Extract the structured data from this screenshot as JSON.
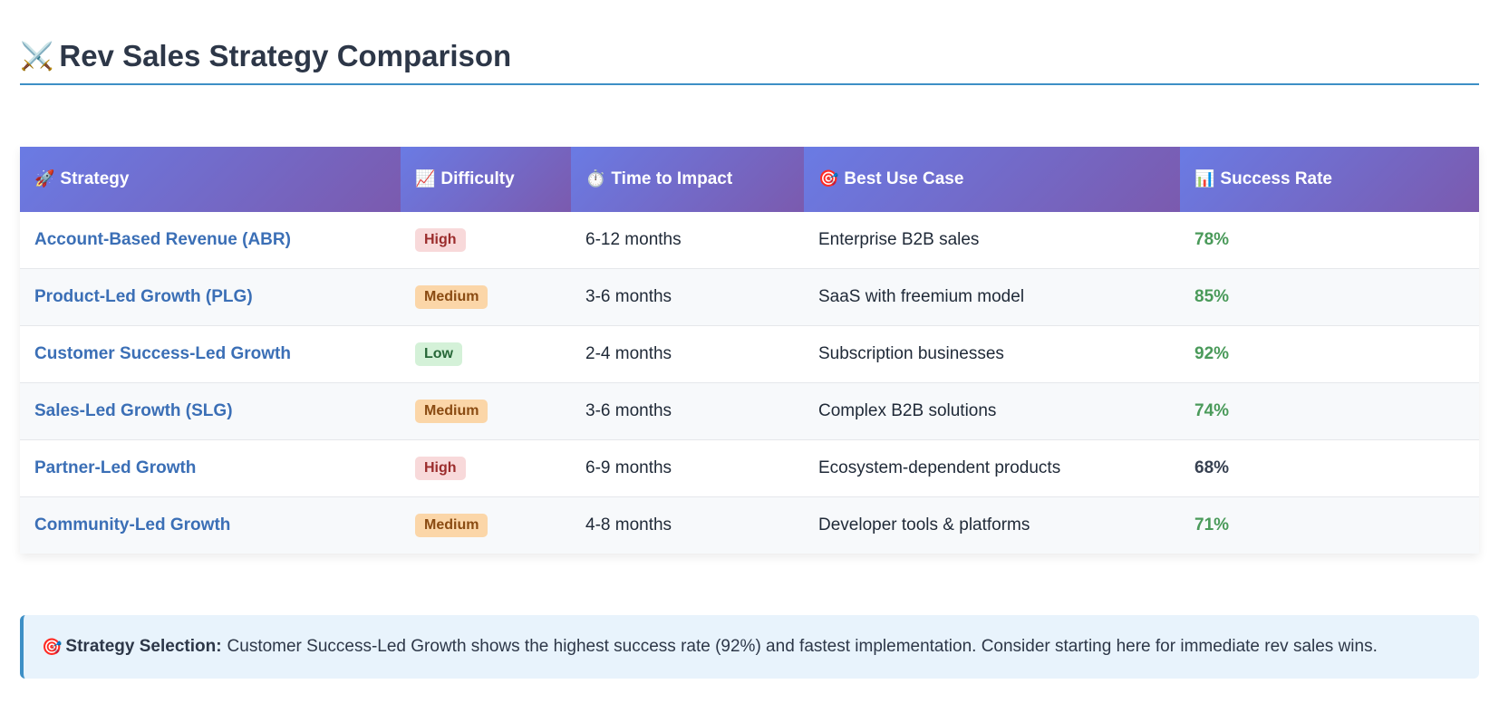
{
  "header": {
    "icon": "⚔️",
    "title": "Rev Sales Strategy Comparison"
  },
  "table": {
    "columns": [
      {
        "icon": "🚀",
        "label": "Strategy"
      },
      {
        "icon": "📈",
        "label": "Difficulty"
      },
      {
        "icon": "⏱️",
        "label": "Time to Impact"
      },
      {
        "icon": "🎯",
        "label": "Best Use Case"
      },
      {
        "icon": "📊",
        "label": "Success Rate"
      }
    ],
    "rows": [
      {
        "strategy": "Account-Based Revenue (ABR)",
        "difficulty": "High",
        "time": "6-12 months",
        "use_case": "Enterprise B2B sales",
        "rate": "78%"
      },
      {
        "strategy": "Product-Led Growth (PLG)",
        "difficulty": "Medium",
        "time": "3-6 months",
        "use_case": "SaaS with freemium model",
        "rate": "85%"
      },
      {
        "strategy": "Customer Success-Led Growth",
        "difficulty": "Low",
        "time": "2-4 months",
        "use_case": "Subscription businesses",
        "rate": "92%"
      },
      {
        "strategy": "Sales-Led Growth (SLG)",
        "difficulty": "Medium",
        "time": "3-6 months",
        "use_case": "Complex B2B solutions",
        "rate": "74%"
      },
      {
        "strategy": "Partner-Led Growth",
        "difficulty": "High",
        "time": "6-9 months",
        "use_case": "Ecosystem-dependent products",
        "rate": "68%"
      },
      {
        "strategy": "Community-Led Growth",
        "difficulty": "Medium",
        "time": "4-8 months",
        "use_case": "Developer tools & platforms",
        "rate": "71%"
      }
    ]
  },
  "callout": {
    "icon": "🎯",
    "label": "Strategy Selection:",
    "text": "Customer Success-Led Growth shows the highest success rate (92%) and fastest implementation. Consider starting here for immediate rev sales wins."
  },
  "colors": {
    "accent": "#3d8fc6",
    "header_gradient_start": "#6a7be4",
    "header_gradient_end": "#7b5aae",
    "strategy_link": "#3b6fb6",
    "success_green": "#4a9a5a"
  }
}
